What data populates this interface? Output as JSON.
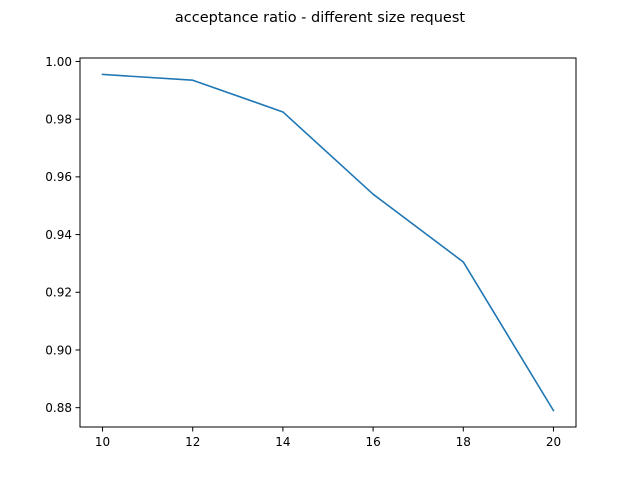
{
  "chart_data": {
    "type": "line",
    "title": "acceptance ratio - different size request",
    "xlabel": "",
    "ylabel": "",
    "x": [
      10,
      12,
      14,
      16,
      18,
      20
    ],
    "series": [
      {
        "values": [
          0.9955,
          0.9935,
          0.9825,
          0.954,
          0.9305,
          0.879
        ],
        "color": "#1f77b4"
      }
    ],
    "xlim": [
      9.5,
      20.5
    ],
    "ylim": [
      0.8733,
      1.0012
    ],
    "xticks": [
      10,
      12,
      14,
      16,
      18,
      20
    ],
    "xtick_labels": [
      "10",
      "12",
      "14",
      "16",
      "18",
      "20"
    ],
    "yticks": [
      0.88,
      0.9,
      0.92,
      0.94,
      0.96,
      0.98,
      1.0
    ],
    "ytick_labels": [
      "0.88",
      "0.90",
      "0.92",
      "0.94",
      "0.96",
      "0.98",
      "1.00"
    ],
    "grid": false,
    "legend": "none"
  }
}
